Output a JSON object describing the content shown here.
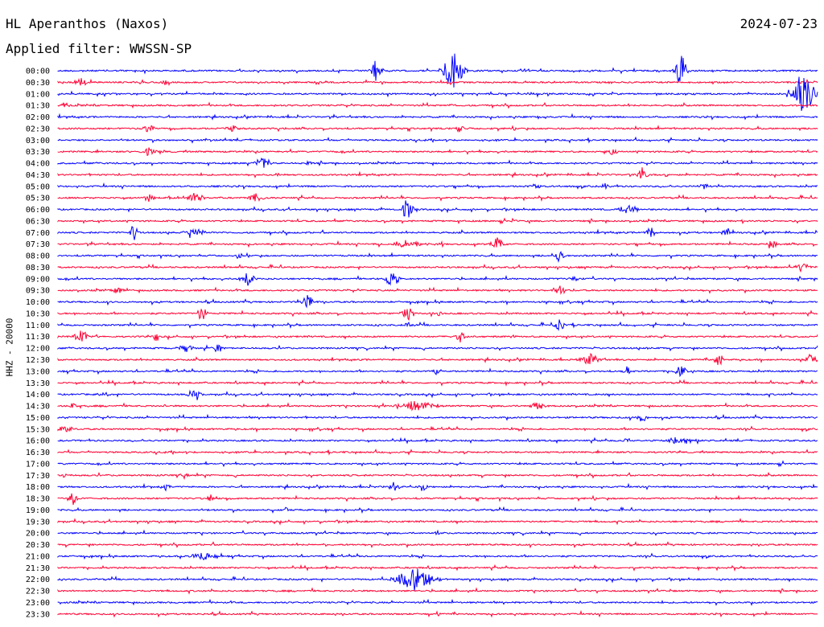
{
  "header": {
    "station": "HL Aperanthos (Naxos)",
    "date": "2024-07-23",
    "filter": "Applied filter: WWSSN-SP"
  },
  "chart_data": {
    "type": "line",
    "title": "HL Aperanthos (Naxos)",
    "ylabel": "HHZ - 20000",
    "colors": [
      "#0000ff",
      "#ff0033"
    ],
    "rows": [
      {
        "time": "00:00",
        "events": [
          [
            0.42,
            18,
            6
          ],
          [
            0.52,
            22,
            12
          ],
          [
            0.82,
            20,
            6
          ]
        ]
      },
      {
        "time": "00:30",
        "events": [
          [
            0.03,
            5,
            8
          ],
          [
            0.14,
            4,
            3
          ]
        ]
      },
      {
        "time": "01:00",
        "events": [
          [
            0.98,
            24,
            14
          ]
        ]
      },
      {
        "time": "01:30",
        "events": [
          [
            0.01,
            3,
            4
          ],
          [
            0.52,
            3,
            3
          ]
        ]
      },
      {
        "time": "02:00",
        "events": [
          [
            0.63,
            2,
            4
          ]
        ]
      },
      {
        "time": "02:30",
        "events": [
          [
            0.12,
            4,
            8
          ],
          [
            0.23,
            4,
            6
          ],
          [
            0.53,
            4,
            6
          ]
        ]
      },
      {
        "time": "03:00",
        "events": []
      },
      {
        "time": "03:30",
        "events": [
          [
            0.12,
            5,
            8
          ],
          [
            0.73,
            4,
            6
          ]
        ]
      },
      {
        "time": "04:00",
        "events": [
          [
            0.27,
            7,
            10
          ],
          [
            0.33,
            3,
            3
          ]
        ]
      },
      {
        "time": "04:30",
        "events": [
          [
            0.29,
            3,
            3
          ],
          [
            0.77,
            12,
            5
          ],
          [
            0.8,
            3,
            3
          ]
        ]
      },
      {
        "time": "05:00",
        "events": [
          [
            0.63,
            3,
            5
          ],
          [
            0.72,
            3,
            4
          ],
          [
            0.85,
            3,
            6
          ]
        ]
      },
      {
        "time": "05:30",
        "events": [
          [
            0.12,
            5,
            6
          ],
          [
            0.18,
            6,
            10
          ],
          [
            0.26,
            6,
            8
          ]
        ]
      },
      {
        "time": "06:00",
        "events": [
          [
            0.46,
            14,
            6
          ],
          [
            0.75,
            8,
            10
          ]
        ]
      },
      {
        "time": "06:30",
        "events": [
          [
            0.6,
            3,
            3
          ],
          [
            0.9,
            3,
            3
          ]
        ]
      },
      {
        "time": "07:00",
        "events": [
          [
            0.1,
            12,
            4
          ],
          [
            0.18,
            5,
            12
          ],
          [
            0.78,
            8,
            5
          ],
          [
            0.88,
            5,
            5
          ]
        ]
      },
      {
        "time": "07:30",
        "events": [
          [
            0.46,
            5,
            18
          ],
          [
            0.58,
            8,
            8
          ],
          [
            0.94,
            4,
            6
          ]
        ]
      },
      {
        "time": "08:00",
        "events": [
          [
            0.24,
            3,
            4
          ],
          [
            0.66,
            7,
            5
          ]
        ]
      },
      {
        "time": "08:30",
        "events": [
          [
            0.98,
            5,
            8
          ]
        ]
      },
      {
        "time": "09:00",
        "events": [
          [
            0.25,
            8,
            8
          ],
          [
            0.44,
            10,
            8
          ],
          [
            0.68,
            4,
            6
          ]
        ]
      },
      {
        "time": "09:30",
        "events": [
          [
            0.08,
            4,
            6
          ],
          [
            0.66,
            8,
            6
          ]
        ]
      },
      {
        "time": "10:00",
        "events": [
          [
            0.33,
            9,
            6
          ]
        ]
      },
      {
        "time": "10:30",
        "events": [
          [
            0.19,
            12,
            5
          ],
          [
            0.46,
            10,
            6
          ],
          [
            0.5,
            3,
            6
          ]
        ]
      },
      {
        "time": "11:00",
        "events": [
          [
            0.46,
            3,
            4
          ],
          [
            0.66,
            8,
            5
          ]
        ]
      },
      {
        "time": "11:30",
        "events": [
          [
            0.03,
            8,
            8
          ],
          [
            0.13,
            10,
            3
          ],
          [
            0.53,
            8,
            5
          ],
          [
            0.6,
            3,
            4
          ]
        ]
      },
      {
        "time": "12:00",
        "events": [
          [
            0.17,
            4,
            10
          ],
          [
            0.21,
            5,
            6
          ]
        ]
      },
      {
        "time": "12:30",
        "events": [
          [
            0.7,
            7,
            10
          ],
          [
            0.87,
            9,
            5
          ],
          [
            0.99,
            6,
            5
          ]
        ]
      },
      {
        "time": "13:00",
        "events": [
          [
            0.5,
            6,
            4
          ],
          [
            0.75,
            6,
            4
          ],
          [
            0.82,
            7,
            6
          ]
        ]
      },
      {
        "time": "13:30",
        "events": []
      },
      {
        "time": "14:00",
        "events": [
          [
            0.06,
            3,
            6
          ],
          [
            0.18,
            6,
            8
          ]
        ]
      },
      {
        "time": "14:30",
        "events": [
          [
            0.02,
            4,
            4
          ],
          [
            0.47,
            6,
            20
          ],
          [
            0.63,
            5,
            8
          ]
        ]
      },
      {
        "time": "15:00",
        "events": [
          [
            0.77,
            6,
            6
          ]
        ]
      },
      {
        "time": "15:30",
        "events": [
          [
            0.01,
            4,
            8
          ]
        ]
      },
      {
        "time": "16:00",
        "events": [
          [
            0.75,
            4,
            5
          ],
          [
            0.82,
            5,
            18
          ]
        ]
      },
      {
        "time": "16:30",
        "events": []
      },
      {
        "time": "17:00",
        "events": []
      },
      {
        "time": "17:30",
        "events": [
          [
            0.01,
            3,
            4
          ],
          [
            0.17,
            3,
            4
          ]
        ]
      },
      {
        "time": "18:00",
        "events": [
          [
            0.14,
            4,
            6
          ],
          [
            0.44,
            6,
            6
          ],
          [
            0.48,
            5,
            6
          ]
        ]
      },
      {
        "time": "18:30",
        "events": [
          [
            0.02,
            10,
            4
          ],
          [
            0.2,
            6,
            4
          ]
        ]
      },
      {
        "time": "19:00",
        "events": [
          [
            0.3,
            3,
            3
          ]
        ]
      },
      {
        "time": "19:30",
        "events": []
      },
      {
        "time": "20:00",
        "events": [
          [
            0.5,
            3,
            3
          ]
        ]
      },
      {
        "time": "20:30",
        "events": [
          [
            0.35,
            3,
            3
          ]
        ]
      },
      {
        "time": "21:00",
        "events": [
          [
            0.19,
            6,
            12
          ]
        ]
      },
      {
        "time": "21:30",
        "events": []
      },
      {
        "time": "22:00",
        "events": [
          [
            0.47,
            14,
            20
          ]
        ]
      },
      {
        "time": "22:30",
        "events": []
      },
      {
        "time": "23:00",
        "events": []
      },
      {
        "time": "23:30",
        "events": [
          [
            0.5,
            3,
            3
          ]
        ]
      }
    ]
  }
}
